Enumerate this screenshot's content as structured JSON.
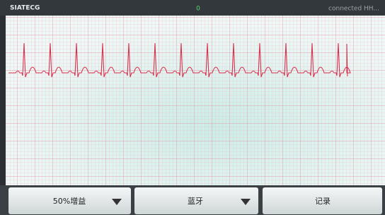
{
  "status_bar": {
    "app_name": "SIATECG",
    "counter": "0",
    "connection": "connected HH..."
  },
  "buttons": [
    {
      "label": "50%增益"
    },
    {
      "label": "蓝牙"
    },
    {
      "label": "记录"
    }
  ]
}
